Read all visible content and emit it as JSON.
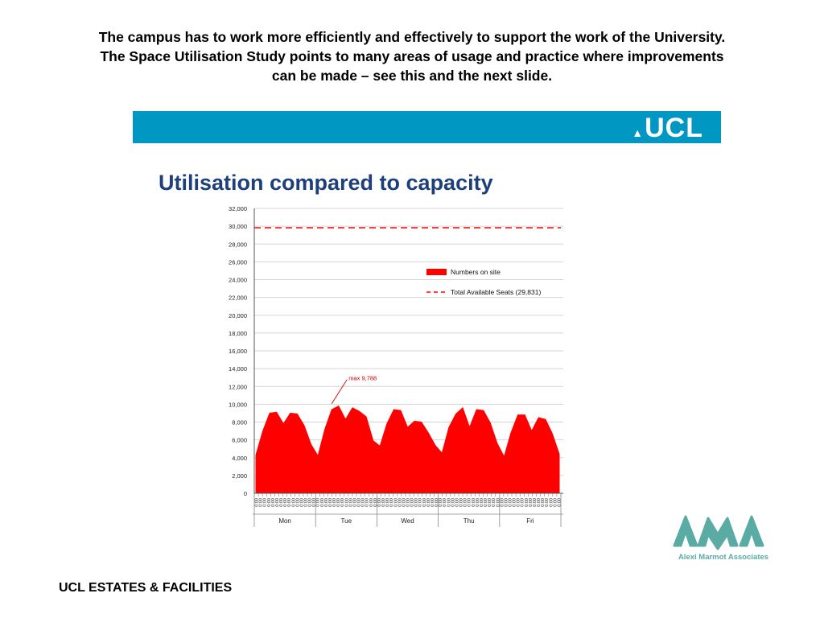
{
  "slide": {
    "heading_lines": [
      "The campus has to work more efficiently and effectively to support the work of the University.",
      "The Space Utilisation Study points to many areas of usage and practice where improvements",
      "can be made – see this and the next slide."
    ],
    "banner_logo": "UCL",
    "banner_color": "#0098c3",
    "footer": "UCL ESTATES & FACILITIES",
    "ama_logo_text": "AMA",
    "ama_company": "Alexi Marmot Associates",
    "ama_color": "#5aaba4"
  },
  "chart_data": {
    "type": "area",
    "title": "Utilisation compared to capacity",
    "ylim": [
      0,
      32000
    ],
    "y_ticks": [
      "0",
      "2,000",
      "4,000",
      "6,000",
      "8,000",
      "10,000",
      "12,000",
      "14,000",
      "16,000",
      "18,000",
      "20,000",
      "22,000",
      "24,000",
      "26,000",
      "28,000",
      "30,000",
      "32,000"
    ],
    "days": [
      "Mon",
      "Tue",
      "Wed",
      "Thu",
      "Fri"
    ],
    "x_tick_label": "0:00",
    "grid": true,
    "legend_position": "right",
    "series": [
      {
        "name": "Numbers on site",
        "kind": "area",
        "color": "#ff0000",
        "values": [
          4300,
          7000,
          9000,
          9100,
          7800,
          9000,
          8900,
          7600,
          5500,
          4200,
          7200,
          9400,
          9800,
          8300,
          9600,
          9200,
          8600,
          5900,
          5300,
          7800,
          9400,
          9300,
          7400,
          8100,
          8000,
          6800,
          5400,
          4500,
          7400,
          8900,
          9600,
          7400,
          9400,
          9300,
          7900,
          5600,
          4100,
          6800,
          8800,
          8800,
          7000,
          8500,
          8300,
          6700,
          4400
        ]
      },
      {
        "name": "Total Available Seats (29,831)",
        "kind": "dashed-line",
        "color": "#ff0000",
        "value": 29831
      }
    ],
    "annotations": [
      {
        "text": "max 9,788",
        "day_index": 1,
        "value": 9788
      }
    ]
  }
}
